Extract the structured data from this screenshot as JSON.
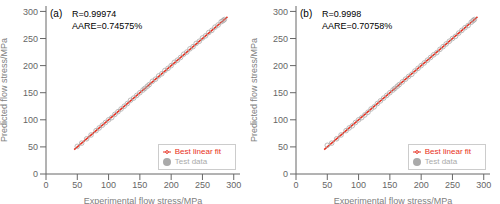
{
  "chart_data": [
    {
      "type": "scatter",
      "xlabel": "Experimental flow stress/MPa",
      "ylabel": "Predicted flow stress/MPa",
      "annotations": [
        "(a)",
        "R=0.99974",
        "AARE=0.74575%"
      ],
      "series": [
        {
          "name": "Test data",
          "type": "scatter",
          "color": "#aaaaaa",
          "marker": "circle",
          "x": [
            50,
            57,
            65,
            72,
            80,
            85,
            90,
            95,
            100,
            105,
            110,
            115,
            120,
            125,
            130,
            135,
            140,
            145,
            150,
            155,
            158,
            162,
            165,
            170,
            175,
            180,
            185,
            190,
            195,
            200,
            205,
            210,
            215,
            220,
            225,
            230,
            235,
            240,
            245,
            250,
            255,
            260,
            265,
            270,
            275,
            280,
            283,
            285
          ],
          "values": [
            51,
            57,
            65,
            72,
            80,
            85,
            90,
            95,
            100,
            104,
            110,
            115,
            120,
            125,
            130,
            136,
            140,
            145,
            150,
            155,
            158,
            162,
            165,
            171,
            175,
            181,
            185,
            191,
            195,
            200,
            206,
            210,
            215,
            221,
            225,
            231,
            235,
            241,
            245,
            251,
            255,
            261,
            265,
            271,
            275,
            281,
            283,
            285
          ]
        },
        {
          "name": "Best linear fit",
          "type": "line",
          "color": "#e83020",
          "x": [
            45,
            290
          ],
          "values": [
            45,
            290
          ]
        }
      ],
      "xlim": [
        0,
        310
      ],
      "ylim": [
        0,
        310
      ],
      "xticks": [
        0,
        50,
        100,
        150,
        200,
        250,
        300
      ],
      "yticks": [
        0,
        50,
        100,
        150,
        200,
        250,
        300
      ],
      "legend": "lower right"
    },
    {
      "type": "scatter",
      "xlabel": "Experimental flow stress/MPa",
      "ylabel": "Predicted flow stress/MPa",
      "annotations": [
        "(b)",
        "R=0.9998",
        "AARE=0.70758%"
      ],
      "series": [
        {
          "name": "Test data",
          "type": "scatter",
          "color": "#aaaaaa",
          "marker": "circle",
          "x": [
            50,
            57,
            65,
            72,
            80,
            85,
            90,
            95,
            100,
            105,
            110,
            115,
            120,
            125,
            130,
            135,
            140,
            145,
            150,
            155,
            158,
            162,
            165,
            170,
            175,
            180,
            185,
            190,
            195,
            200,
            205,
            210,
            215,
            220,
            225,
            230,
            235,
            240,
            245,
            250,
            255,
            260,
            265,
            270,
            275,
            280,
            283,
            285
          ],
          "values": [
            53,
            57,
            65,
            72,
            80,
            85,
            89,
            95,
            100,
            104,
            109,
            114,
            120,
            124,
            130,
            135,
            140,
            145,
            150,
            155,
            158,
            162,
            165,
            170,
            175,
            180,
            184,
            190,
            195,
            200,
            205,
            210,
            215,
            220,
            224,
            230,
            235,
            240,
            245,
            250,
            254,
            260,
            265,
            270,
            274,
            280,
            283,
            285
          ]
        },
        {
          "name": "Best linear fit",
          "type": "line",
          "color": "#e83020",
          "x": [
            45,
            290
          ],
          "values": [
            45,
            290
          ]
        }
      ],
      "xlim": [
        0,
        310
      ],
      "ylim": [
        0,
        310
      ],
      "xticks": [
        0,
        50,
        100,
        150,
        200,
        250,
        300
      ],
      "yticks": [
        0,
        50,
        100,
        150,
        200,
        250,
        300
      ],
      "legend": "lower right"
    }
  ]
}
